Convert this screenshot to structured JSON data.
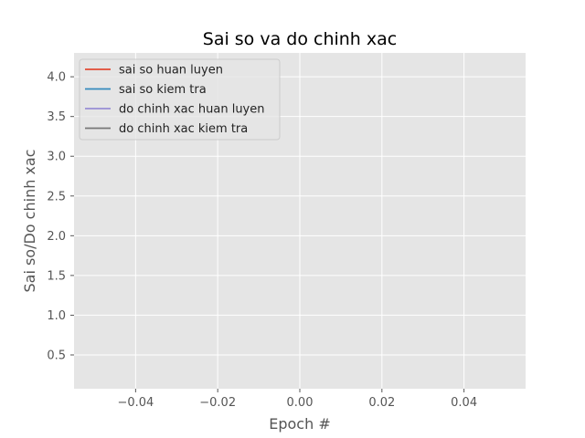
{
  "chart_data": {
    "type": "line",
    "title": "Sai so va do chinh xac",
    "xlabel": "Epoch #",
    "ylabel": "Sai so/Do chinh xac",
    "xlim": [
      -0.055,
      0.055
    ],
    "ylim": [
      0.075,
      4.3
    ],
    "xticks": [
      -0.04,
      -0.02,
      0.0,
      0.02,
      0.04
    ],
    "xtick_labels": [
      "−0.04",
      "−0.02",
      "0.00",
      "0.02",
      "0.04"
    ],
    "yticks": [
      0.5,
      1.0,
      1.5,
      2.0,
      2.5,
      3.0,
      3.5,
      4.0
    ],
    "ytick_labels": [
      "0.5",
      "1.0",
      "1.5",
      "2.0",
      "2.5",
      "3.0",
      "3.5",
      "4.0"
    ],
    "grid": true,
    "legend_position": "top-left",
    "style": {
      "plot_background": "#e5e5e5",
      "grid_color": "#ffffff"
    },
    "series": [
      {
        "name": "sai so huan luyen",
        "color": "#e24a33",
        "x": [
          0
        ],
        "y": [
          null
        ]
      },
      {
        "name": "sai so kiem tra",
        "color": "#348abd",
        "x": [
          0
        ],
        "y": [
          null
        ]
      },
      {
        "name": "do chinh xac huan luyen",
        "color": "#988ed5",
        "x": [
          0
        ],
        "y": [
          null
        ]
      },
      {
        "name": "do chinh xac kiem tra",
        "color": "#777777",
        "x": [
          0
        ],
        "y": [
          null
        ]
      }
    ]
  }
}
